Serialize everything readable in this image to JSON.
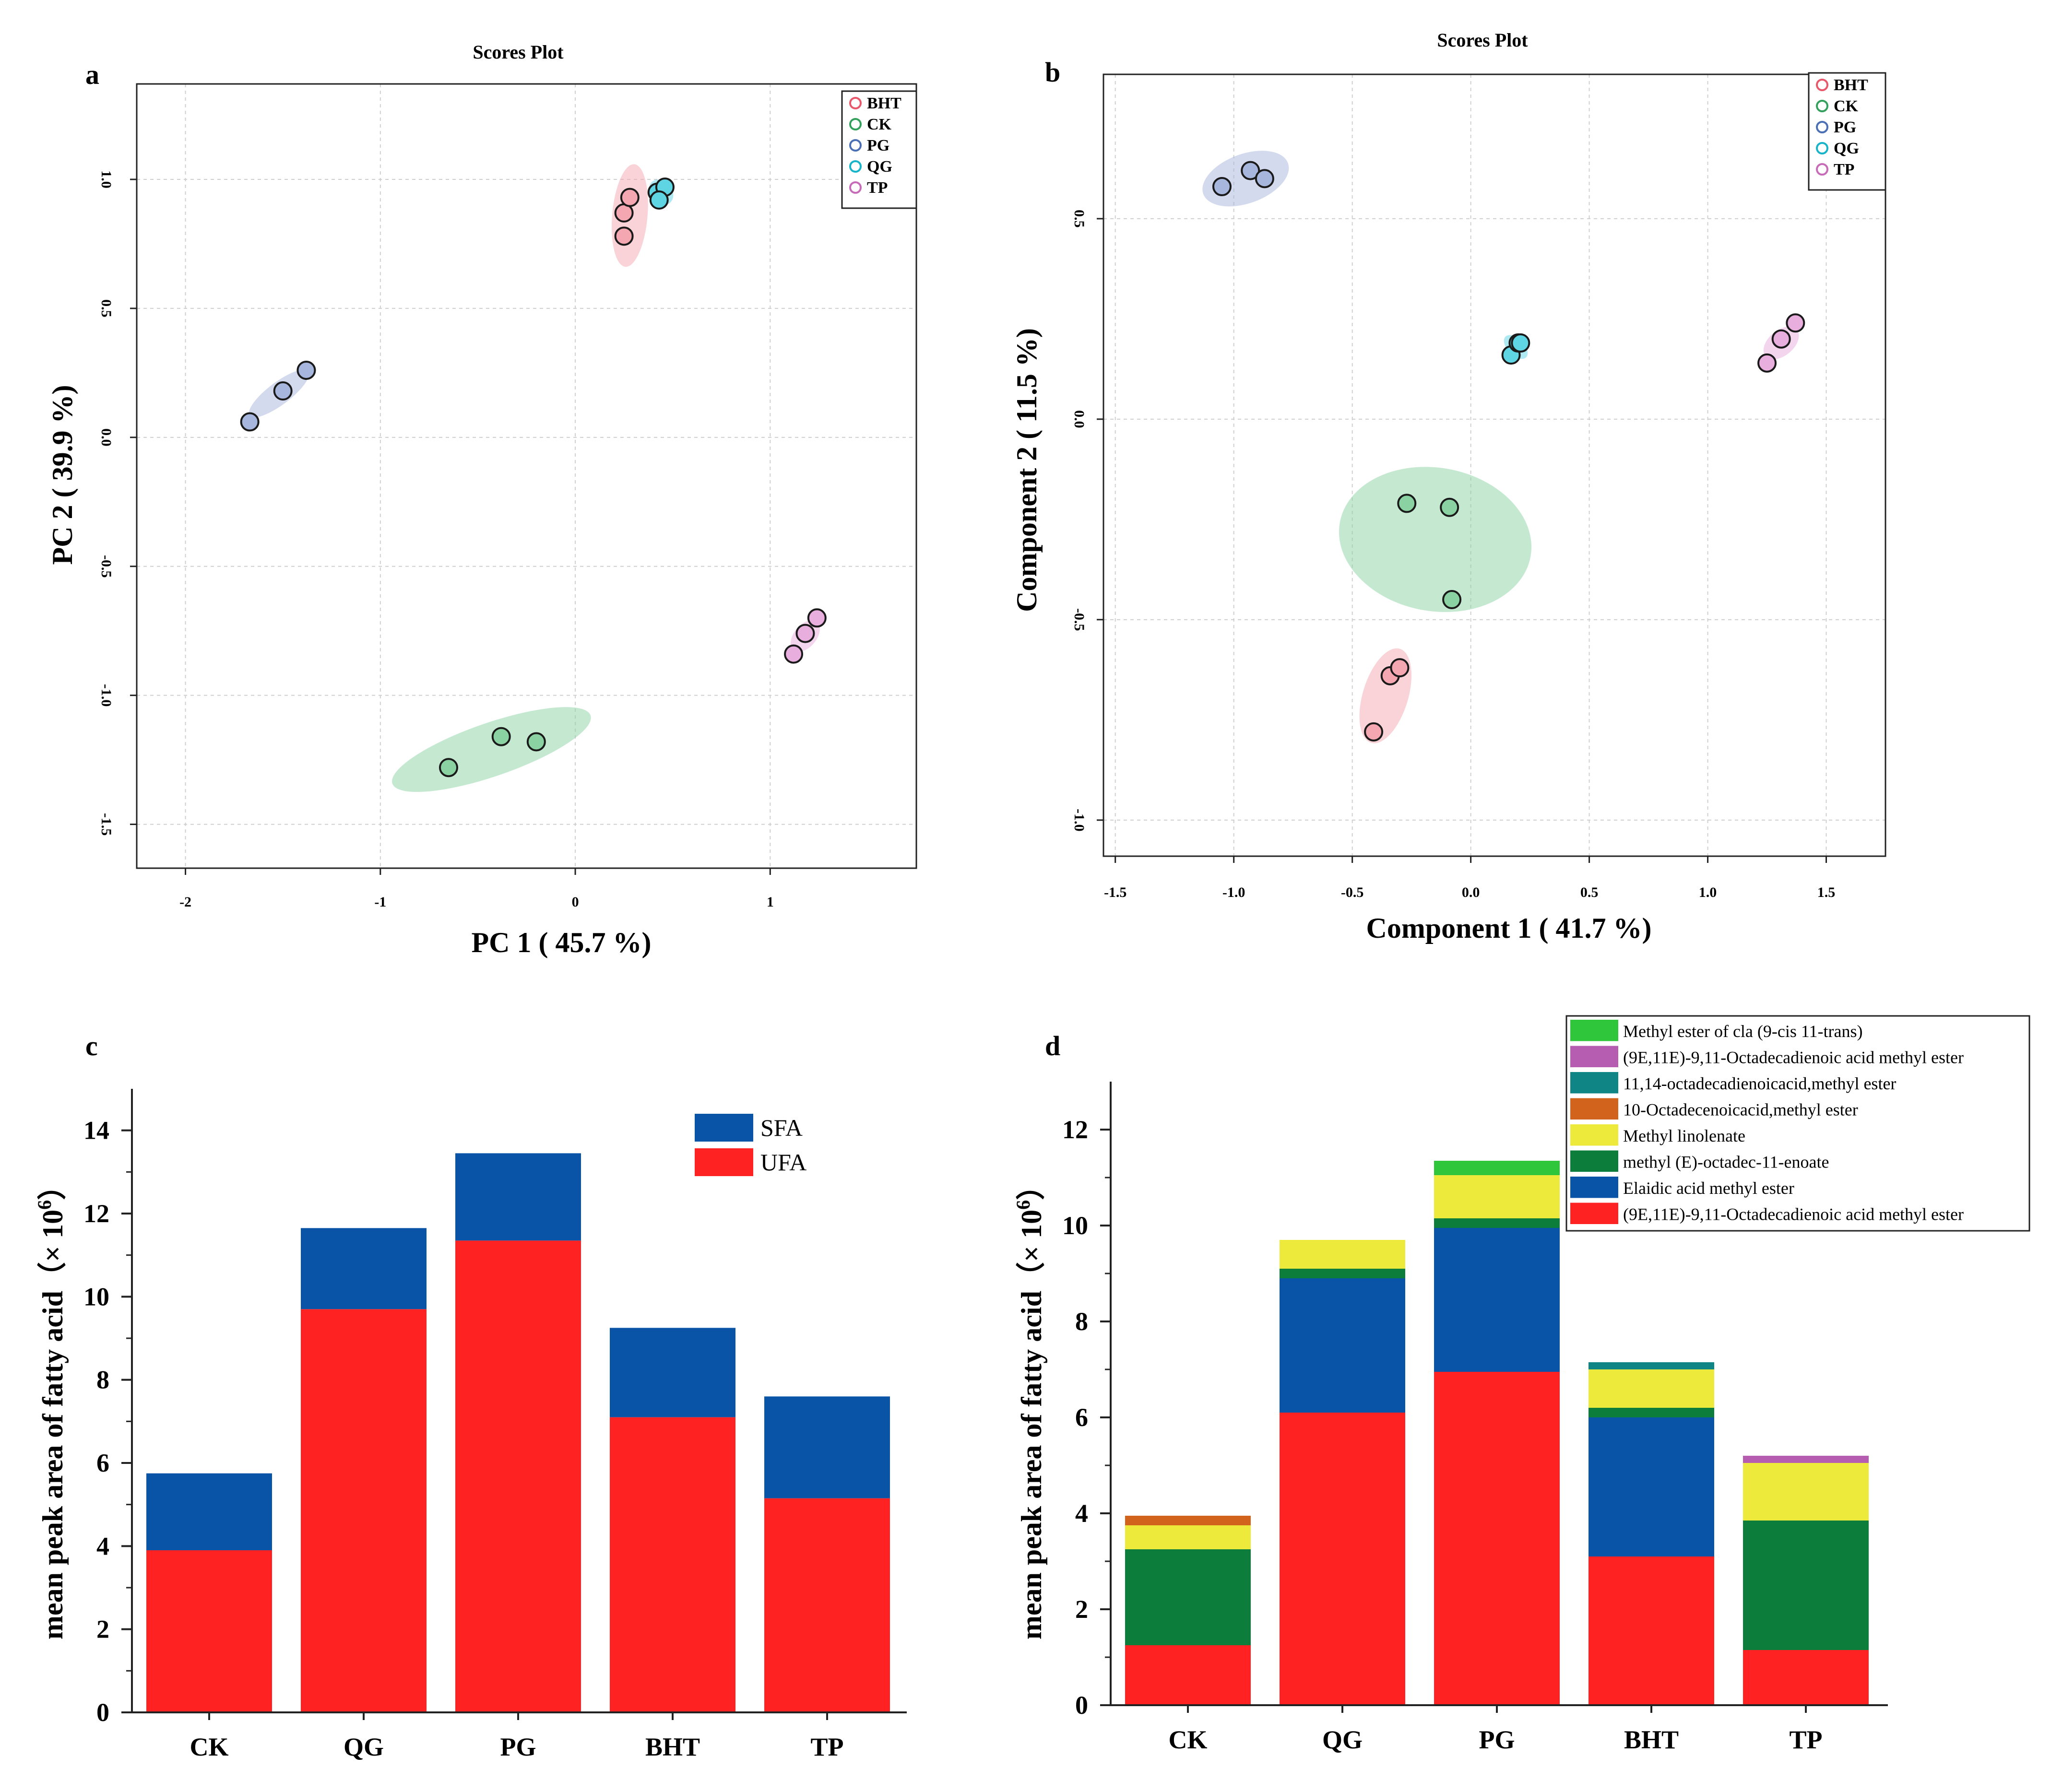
{
  "chart_data": [
    {
      "id": "a",
      "type": "scatter",
      "panel_label": "a",
      "title": "Scores Plot",
      "xlabel": "PC 1 ( 45.7 %)",
      "ylabel": "PC 2 ( 39.9 %)",
      "xlim": [
        -2.25,
        1.75
      ],
      "ylim": [
        -1.67,
        1.37
      ],
      "xticks": [
        -2,
        -1,
        0,
        1
      ],
      "yticks": [
        -1.5,
        -1.0,
        -0.5,
        0.0,
        0.5,
        1.0
      ],
      "xtick_labels": [
        "-2",
        "-1",
        "0",
        "1"
      ],
      "ytick_labels": [
        "-1.5",
        "-1.0",
        "-0.5",
        "0.0",
        "0.5",
        "1.0"
      ],
      "grid": true,
      "legend_position": "top-right",
      "series": [
        {
          "name": "BHT",
          "color": "#e8576a",
          "fill": "#f4a7b0",
          "points": [
            [
              0.25,
              0.87
            ],
            [
              0.28,
              0.93
            ],
            [
              0.25,
              0.78
            ]
          ],
          "ellipse": {
            "cx": 0.28,
            "cy": 0.86,
            "rx": 0.28,
            "ry": 0.035,
            "angle": 85
          }
        },
        {
          "name": "CK",
          "color": "#33a05c",
          "fill": "#8ad2a2",
          "points": [
            [
              -0.65,
              -1.28
            ],
            [
              -0.38,
              -1.16
            ],
            [
              -0.2,
              -1.18
            ]
          ],
          "ellipse": {
            "cx": -0.43,
            "cy": -1.21,
            "rx": 0.57,
            "ry": 0.07,
            "angle": 19
          }
        },
        {
          "name": "PG",
          "color": "#4b6fb5",
          "fill": "#a7b6dc",
          "points": [
            [
              -1.67,
              0.06
            ],
            [
              -1.5,
              0.18
            ],
            [
              -1.38,
              0.26
            ]
          ],
          "ellipse": {
            "cx": -1.52,
            "cy": 0.17,
            "rx": 0.2,
            "ry": 0.01,
            "angle": 37
          }
        },
        {
          "name": "QG",
          "color": "#17b4c9",
          "fill": "#5fd4e3",
          "points": [
            [
              0.42,
              0.95
            ],
            [
              0.46,
              0.97
            ],
            [
              0.43,
              0.92
            ]
          ],
          "ellipse": {
            "cx": 0.44,
            "cy": 0.95,
            "rx": 0.06,
            "ry": 0.02,
            "angle": 40
          }
        },
        {
          "name": "TP",
          "color": "#c76bb8",
          "fill": "#e7aede",
          "points": [
            [
              1.12,
              -0.84
            ],
            [
              1.18,
              -0.76
            ],
            [
              1.24,
              -0.7
            ]
          ],
          "ellipse": {
            "cx": 1.18,
            "cy": -0.77,
            "rx": 0.1,
            "ry": 0.01,
            "angle": 50
          }
        }
      ]
    },
    {
      "id": "b",
      "type": "scatter",
      "panel_label": "b",
      "title": "Scores Plot",
      "xlabel": "Component 1 ( 41.7 %)",
      "ylabel": "Component 2 ( 11.5 %)",
      "xlim": [
        -1.55,
        1.75
      ],
      "ylim": [
        -1.09,
        0.86
      ],
      "xticks": [
        -1.5,
        -1.0,
        -0.5,
        0.0,
        0.5,
        1.0,
        1.5
      ],
      "yticks": [
        -1.0,
        -0.5,
        0.0,
        0.5
      ],
      "xtick_labels": [
        "-1.5",
        "-1.0",
        "-0.5",
        "0.0",
        "0.5",
        "1.0",
        "1.5"
      ],
      "ytick_labels": [
        "-1.0",
        "-0.5",
        "0.0",
        "0.5"
      ],
      "grid": true,
      "legend_position": "top-right",
      "series": [
        {
          "name": "BHT",
          "color": "#e8576a",
          "fill": "#f4a7b0",
          "points": [
            [
              -0.41,
              -0.78
            ],
            [
              -0.34,
              -0.64
            ],
            [
              -0.3,
              -0.62
            ]
          ],
          "ellipse": {
            "cx": -0.36,
            "cy": -0.69,
            "rx": 0.24,
            "ry": 0.035,
            "angle": 73
          }
        },
        {
          "name": "CK",
          "color": "#33a05c",
          "fill": "#8ad2a2",
          "points": [
            [
              -0.27,
              -0.21
            ],
            [
              -0.09,
              -0.22
            ],
            [
              -0.08,
              -0.45
            ]
          ],
          "ellipse": {
            "cx": -0.15,
            "cy": -0.3,
            "rx": 0.35,
            "ry": 0.22,
            "angle": 80
          }
        },
        {
          "name": "PG",
          "color": "#4b6fb5",
          "fill": "#a7b6dc",
          "points": [
            [
              -1.05,
              0.58
            ],
            [
              -0.93,
              0.62
            ],
            [
              -0.87,
              0.6
            ]
          ],
          "ellipse": {
            "cx": -0.95,
            "cy": 0.6,
            "rx": 0.22,
            "ry": 0.04,
            "angle": 20
          }
        },
        {
          "name": "QG",
          "color": "#17b4c9",
          "fill": "#5fd4e3",
          "points": [
            [
              0.17,
              0.16
            ],
            [
              0.2,
              0.19
            ],
            [
              0.21,
              0.19
            ]
          ],
          "ellipse": {
            "cx": 0.19,
            "cy": 0.18,
            "rx": 0.04,
            "ry": 0.015,
            "angle": 45
          }
        },
        {
          "name": "TP",
          "color": "#c76bb8",
          "fill": "#e7aede",
          "points": [
            [
              1.25,
              0.14
            ],
            [
              1.31,
              0.2
            ],
            [
              1.37,
              0.24
            ]
          ],
          "ellipse": {
            "cx": 1.31,
            "cy": 0.19,
            "rx": 0.1,
            "ry": 0.01,
            "angle": 40
          }
        }
      ]
    },
    {
      "id": "c",
      "type": "bar",
      "stacked": true,
      "panel_label": "c",
      "ylabel_prefix": "mean peak area of fatty acid（× 10",
      "ylabel_exp": "6",
      "ylabel_suffix": "）",
      "ylim": [
        0,
        15
      ],
      "yticks": [
        0,
        2,
        4,
        6,
        8,
        10,
        12,
        14
      ],
      "ytick_labels": [
        "0",
        "2",
        "4",
        "6",
        "8",
        "10",
        "12",
        "14"
      ],
      "categories": [
        "CK",
        "QG",
        "PG",
        "BHT",
        "TP"
      ],
      "legend_position": "top-right",
      "series": [
        {
          "name": "UFA",
          "color": "#ff2222",
          "values": [
            3.9,
            9.7,
            11.35,
            7.1,
            5.15
          ]
        },
        {
          "name": "SFA",
          "color": "#0a54a8",
          "values": [
            1.85,
            1.95,
            2.1,
            2.15,
            2.45
          ]
        }
      ],
      "legend_order": [
        "SFA",
        "UFA"
      ]
    },
    {
      "id": "d",
      "type": "bar",
      "stacked": true,
      "panel_label": "d",
      "ylabel_prefix": "mean peak area of fatty acid（× 10",
      "ylabel_exp": "6",
      "ylabel_suffix": "）",
      "ylim": [
        0,
        13
      ],
      "yticks": [
        0,
        2,
        4,
        6,
        8,
        10,
        12
      ],
      "ytick_labels": [
        "0",
        "2",
        "4",
        "6",
        "8",
        "10",
        "12"
      ],
      "categories": [
        "CK",
        "QG",
        "PG",
        "BHT",
        "TP"
      ],
      "legend_position": "top-right",
      "series": [
        {
          "name": "(9E,11E)-9,11-Octadecadienoic acid methyl ester",
          "color": "#ff2222",
          "values": [
            1.25,
            6.1,
            6.95,
            3.1,
            1.15
          ]
        },
        {
          "name": "Elaidic acid methyl ester",
          "color": "#0a54a8",
          "values": [
            0,
            2.8,
            3.0,
            2.9,
            0
          ]
        },
        {
          "name": "methyl (E)-octadec-11-enoate",
          "color": "#0c7d3a",
          "values": [
            2.0,
            0.2,
            0.2,
            0.2,
            2.7
          ]
        },
        {
          "name": "Methyl linolenate",
          "color": "#eeea3c",
          "values": [
            0.5,
            0.6,
            0.9,
            0.8,
            1.2
          ]
        },
        {
          "name": "10-Octadecenoicacid,methyl ester",
          "color": "#d2631c",
          "values": [
            0.2,
            0,
            0,
            0,
            0
          ]
        },
        {
          "name": "11,14-octadecadienoicacid,methyl ester",
          "color": "#0f8585",
          "values": [
            0,
            0,
            0,
            0.15,
            0
          ]
        },
        {
          "name": "(9E,11E)-9,11-Octadecadienoic acid methyl ester",
          "color": "#b75db1",
          "values": [
            0,
            0,
            0,
            0,
            0.15
          ]
        },
        {
          "name": "Methyl ester of cla (9-cis  11-trans)",
          "color": "#2fc63c",
          "values": [
            0,
            0,
            0.3,
            0,
            0
          ]
        }
      ]
    }
  ]
}
